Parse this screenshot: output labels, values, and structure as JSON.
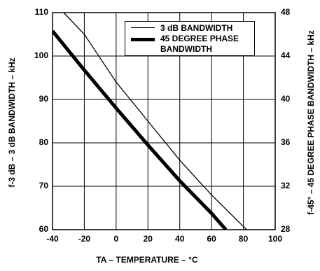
{
  "chart_data": {
    "type": "line",
    "x_label": "TA – TEMPERATURE – °C",
    "y_label": "f-3 dB – 3 dB BANDWIDTH – kHz",
    "y2_label": "f-45° – 45 DEGREE PHASE BANDWIDTH – kHz",
    "xlim": [
      -40,
      100
    ],
    "xticks": [
      -40,
      -20,
      0,
      20,
      40,
      60,
      80,
      100
    ],
    "ylim": [
      60,
      110
    ],
    "yticks": [
      60,
      70,
      80,
      90,
      100,
      110
    ],
    "y2lim": [
      28,
      48
    ],
    "y2ticks": [
      28,
      32,
      36,
      40,
      44,
      48
    ],
    "grid": true,
    "legend": "upper right",
    "series": [
      {
        "name": "3 dB BANDWIDTH",
        "color": "#000000",
        "width": 1.3,
        "x": [
          -33,
          -20,
          0,
          20,
          40,
          60,
          82
        ],
        "values": [
          110,
          105,
          94,
          85,
          76,
          68,
          60
        ]
      },
      {
        "name": "45 DEGREE PHASE BANDWIDTH",
        "color": "#000000",
        "width": 5,
        "axis": "y2",
        "x": [
          -40,
          -20,
          0,
          20,
          40,
          60,
          69
        ],
        "values": [
          46.3,
          42.7,
          39.2,
          35.8,
          32.5,
          29.5,
          28
        ]
      }
    ]
  }
}
